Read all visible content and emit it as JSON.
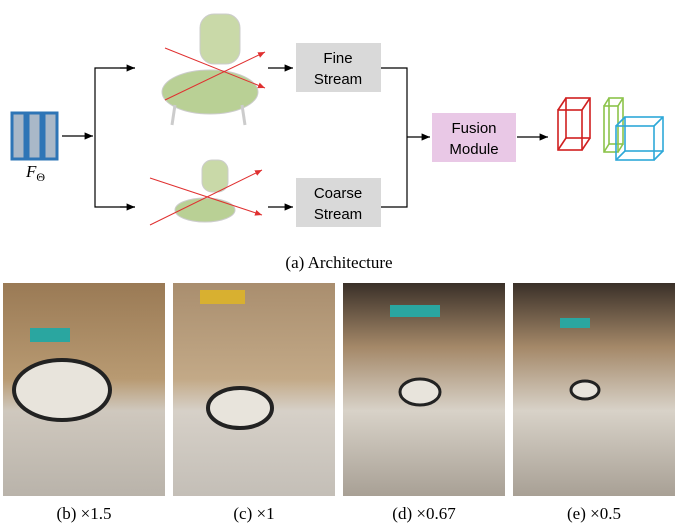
{
  "diagram": {
    "input_label": {
      "base": "F",
      "sub": "Θ"
    },
    "fine_stream": [
      "Fine",
      "Stream"
    ],
    "coarse_stream": [
      "Coarse",
      "Stream"
    ],
    "fusion_module": [
      "Fusion",
      "Module"
    ],
    "caption": "(a) Architecture"
  },
  "panels": [
    {
      "caption": "(b) ×1.5"
    },
    {
      "caption": "(c) ×1"
    },
    {
      "caption": "(d) ×0.67"
    },
    {
      "caption": "(e) ×0.5"
    }
  ]
}
